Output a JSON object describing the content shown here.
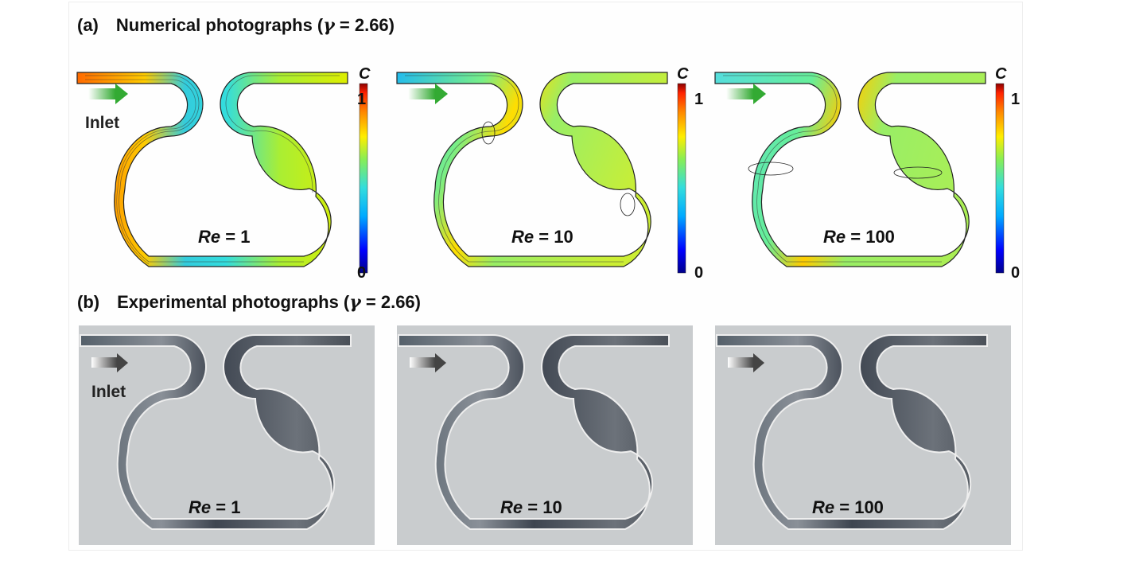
{
  "panel_a": {
    "tag": "(a)",
    "title_prefix": "Numerical photographs (",
    "gamma_symbol": "γ",
    "gamma_value": " = 2.66)",
    "inlet_label": "Inlet",
    "colorbar": {
      "label": "C",
      "max_label": "1",
      "min_label": "0",
      "min": 0,
      "max": 1
    },
    "cases": [
      {
        "re_var": "Re",
        "re_value": "= 1"
      },
      {
        "re_var": "Re",
        "re_value": "= 10"
      },
      {
        "re_var": "Re",
        "re_value": "= 100"
      }
    ]
  },
  "panel_b": {
    "tag": "(b)",
    "title_prefix": "Experimental photographs (",
    "gamma_symbol": "γ",
    "gamma_value": " = 2.66)",
    "inlet_label": "Inlet",
    "cases": [
      {
        "re_var": "Re",
        "re_value": "= 1"
      },
      {
        "re_var": "Re",
        "re_value": "= 10"
      },
      {
        "re_var": "Re",
        "re_value": "= 100"
      }
    ]
  },
  "colors": {
    "colormap": [
      "#00008b",
      "#0000ff",
      "#00aaff",
      "#33dddd",
      "#88ee55",
      "#ffee00",
      "#ff8800",
      "#ff2200",
      "#8b0000"
    ],
    "experiment_dark": "#3a3f4a",
    "experiment_light": "#c9ccce",
    "arrow_green": "#33aa33"
  }
}
